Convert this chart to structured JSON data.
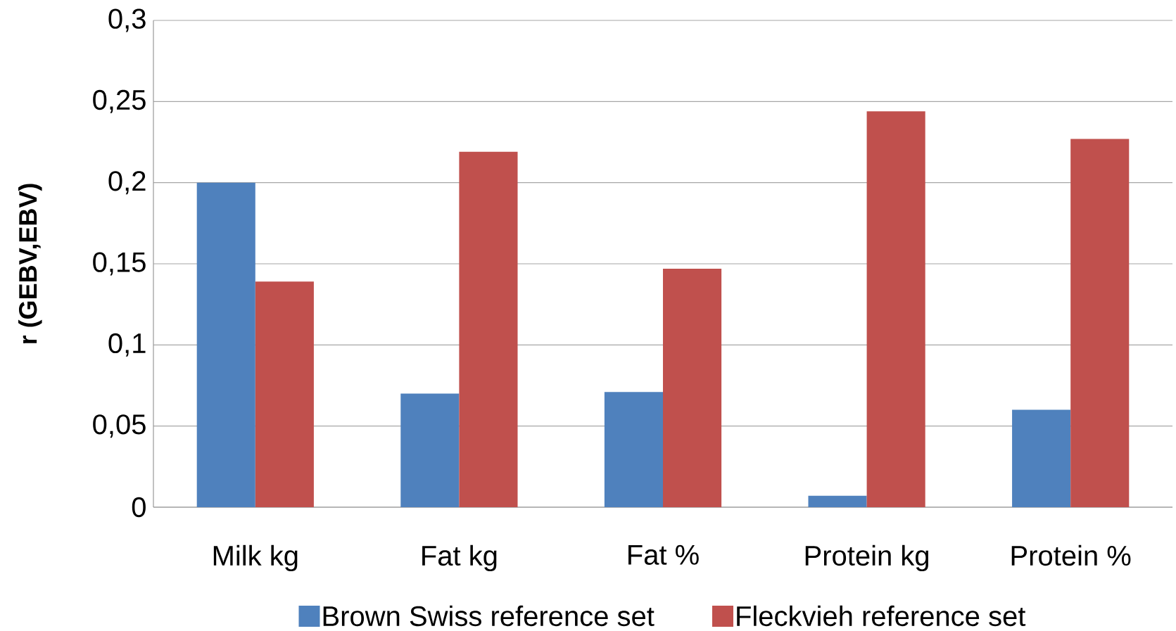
{
  "chart_data": {
    "type": "bar",
    "ylabel": "r (GEBV,EBV)",
    "categories": [
      "Milk kg",
      "Fat kg",
      "Fat %",
      "Protein kg",
      "Protein %"
    ],
    "series": [
      {
        "name": "Brown Swiss reference set",
        "color": "#4f81bd",
        "values": [
          0.2,
          0.07,
          0.071,
          0.007,
          0.06
        ]
      },
      {
        "name": "Fleckvieh reference set",
        "color": "#c0504d",
        "values": [
          0.139,
          0.219,
          0.147,
          0.244,
          0.227
        ]
      }
    ],
    "ylim": [
      0,
      0.3
    ],
    "yticks": [
      0,
      {
        "value": 0.05,
        "label": "0,05"
      },
      {
        "value": 0.1,
        "label": "0,1"
      },
      {
        "value": 0.15,
        "label": "0,15"
      },
      {
        "value": 0.2,
        "label": "0,2"
      },
      {
        "value": 0.25,
        "label": "0,25"
      },
      {
        "value": 0.3,
        "label": "0,3"
      }
    ],
    "grid": "y",
    "legend": "bottom"
  }
}
